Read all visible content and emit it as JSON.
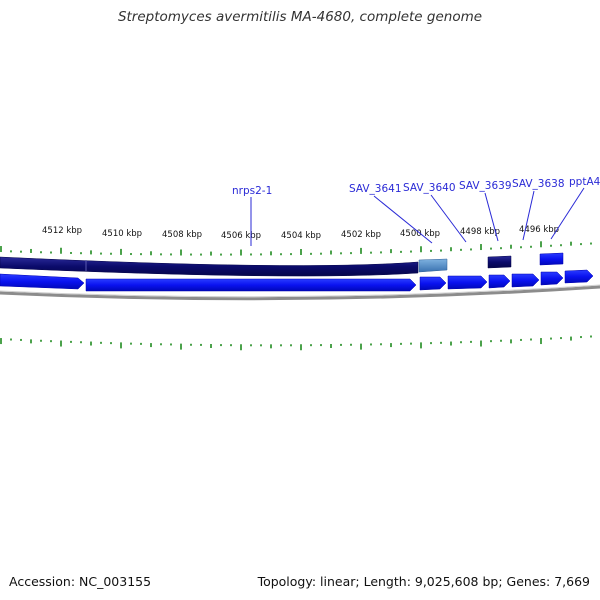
{
  "title": "Streptomyces avermitilis MA-4680, complete genome",
  "footer": {
    "accession": "Accession: NC_003155",
    "summary": "Topology: linear; Length: 9,025,608 bp; Genes: 7,669"
  },
  "scale": {
    "labels": [
      "4512 kbp",
      "4510 kbp",
      "4508 kbp",
      "4506 kbp",
      "4504 kbp",
      "4502 kbp",
      "4500 kbp",
      "4498 kbp",
      "4496 kbp"
    ]
  },
  "genes": [
    {
      "label": "nrps2-1"
    },
    {
      "label": "SAV_3641"
    },
    {
      "label": "SAV_3640"
    },
    {
      "label": "SAV_3639"
    },
    {
      "label": "SAV_3638"
    },
    {
      "label": "pptA4"
    }
  ],
  "colors": {
    "cds": "#0a12f0",
    "cds_edge": "#0000b0",
    "feature_dark": "#0b0b6b",
    "feature_light": "#4a86c6",
    "tick": "#1e8a1e",
    "label": "#2a2ad6",
    "backbone": "#8c8c8c"
  }
}
